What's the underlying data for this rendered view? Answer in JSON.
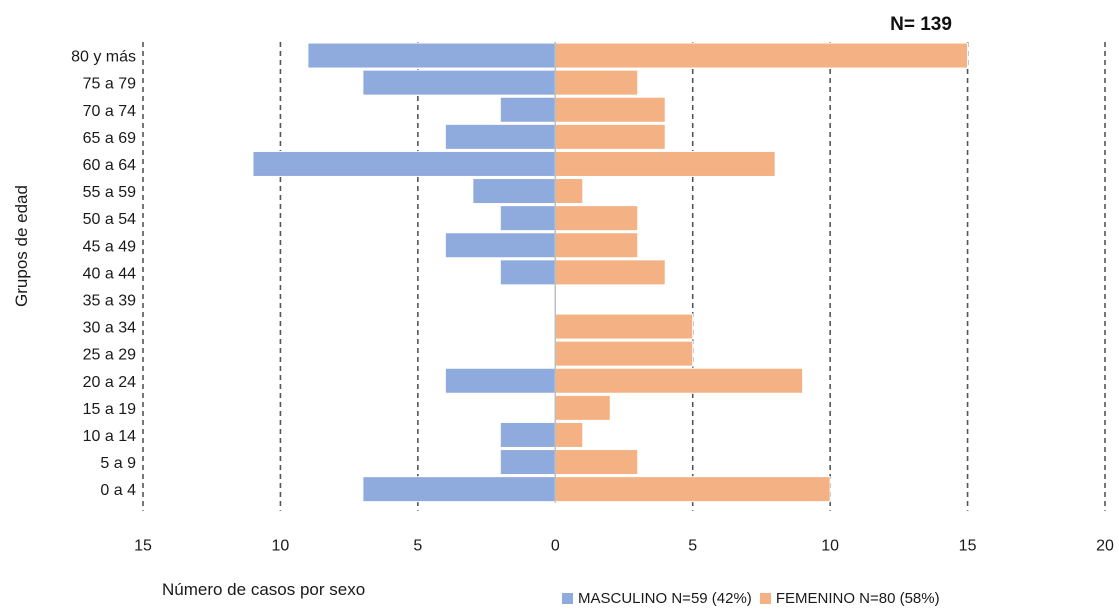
{
  "chart_data": {
    "type": "bar",
    "orientation": "horizontal",
    "title": "N= 139",
    "ylabel": "Grupos de edad",
    "xlabel": "Número de casos  por sexo",
    "categories": [
      "80 y más",
      "75 a 79",
      "70 a 74",
      "65 a 69",
      "60 a 64",
      "55 a 59",
      "50 a 54",
      "45 a 49",
      "40 a 44 ",
      "35 a 39",
      "30 a 34",
      "25 a 29",
      "20 a 24",
      "15 a 19",
      "10 a 14",
      "5 a 9",
      "0 a 4"
    ],
    "series": [
      {
        "name": "MASCULINO N=59 (42%)",
        "color": "#8faadc",
        "side": "left",
        "values": [
          9,
          7,
          2,
          4,
          11,
          3,
          2,
          4,
          2,
          0,
          0,
          0,
          4,
          0,
          2,
          2,
          7
        ]
      },
      {
        "name": "FEMENINO N=80 (58%)",
        "color": "#f4b183",
        "side": "right",
        "values": [
          15,
          3,
          4,
          4,
          8,
          1,
          3,
          3,
          4,
          0,
          5,
          5,
          9,
          2,
          1,
          3,
          10
        ]
      }
    ],
    "xlim": [
      -15,
      20
    ],
    "xticks": [
      -15,
      -10,
      -5,
      0,
      5,
      10,
      15,
      20
    ],
    "xtick_labels": [
      "15",
      "10",
      "5",
      "0",
      "5",
      "10",
      "15",
      "20"
    ],
    "grid": "vertical dashed",
    "legend_position": "bottom"
  }
}
